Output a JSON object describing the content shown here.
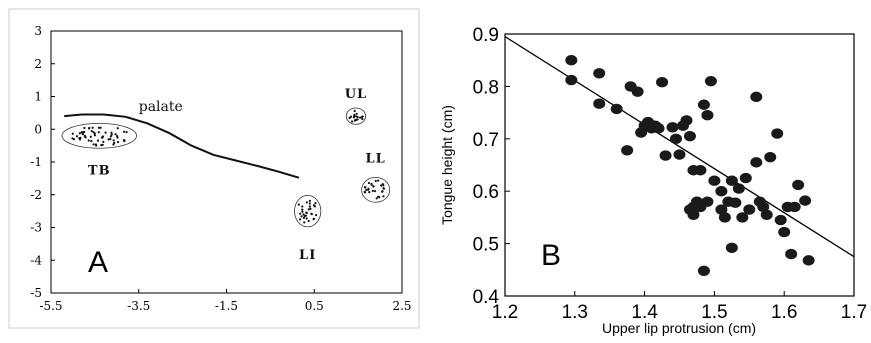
{
  "chart_data": [
    {
      "type": "scatter",
      "panel_label": "A",
      "xlim": [
        -5.5,
        2.5
      ],
      "ylim": [
        -5,
        3
      ],
      "xticks": [
        "-5.5",
        "-3.5",
        "-1.5",
        "0.5",
        "2.5"
      ],
      "yticks": [
        "3",
        "2",
        "1",
        "0",
        "-1",
        "-2",
        "-3",
        "-4",
        "-5"
      ],
      "xlabel": "",
      "ylabel": "",
      "grid": false,
      "palate": {
        "label": "palate",
        "points": [
          [
            -5.2,
            0.4
          ],
          [
            -4.8,
            0.45
          ],
          [
            -4.3,
            0.45
          ],
          [
            -3.8,
            0.38
          ],
          [
            -3.3,
            0.18
          ],
          [
            -2.8,
            -0.12
          ],
          [
            -2.3,
            -0.5
          ],
          [
            -1.8,
            -0.78
          ],
          [
            -1.3,
            -0.95
          ],
          [
            -0.8,
            -1.12
          ],
          [
            -0.3,
            -1.3
          ],
          [
            0.0,
            -1.42
          ],
          [
            0.15,
            -1.48
          ]
        ]
      },
      "clusters": [
        {
          "label": "TB",
          "center": [
            -4.4,
            -0.2
          ],
          "radii": [
            0.85,
            0.38
          ],
          "count": 60
        },
        {
          "label": "UL",
          "center": [
            1.45,
            0.4
          ],
          "radii": [
            0.22,
            0.25
          ],
          "count": 18
        },
        {
          "label": "LL",
          "center": [
            1.9,
            -1.85
          ],
          "radii": [
            0.32,
            0.38
          ],
          "count": 28
        },
        {
          "label": "LI",
          "center": [
            0.35,
            -2.5
          ],
          "radii": [
            0.3,
            0.48
          ],
          "count": 30
        }
      ]
    },
    {
      "type": "scatter",
      "panel_label": "B",
      "xlabel": "Upper lip protrusion (cm)",
      "ylabel": "Tongue height (cm)",
      "xlim": [
        1.2,
        1.7
      ],
      "ylim": [
        0.4,
        0.9
      ],
      "xticks": [
        "1.2",
        "1.3",
        "1.4",
        "1.5",
        "1.6",
        "1.7"
      ],
      "yticks": [
        "0.9",
        "0.8",
        "0.7",
        "0.6",
        "0.5",
        "0.4"
      ],
      "grid": false,
      "regression_line": [
        [
          1.2,
          0.895
        ],
        [
          1.7,
          0.475
        ]
      ],
      "points": [
        [
          1.295,
          0.85
        ],
        [
          1.295,
          0.812
        ],
        [
          1.335,
          0.825
        ],
        [
          1.335,
          0.767
        ],
        [
          1.36,
          0.757
        ],
        [
          1.375,
          0.678
        ],
        [
          1.38,
          0.8
        ],
        [
          1.39,
          0.79
        ],
        [
          1.395,
          0.712
        ],
        [
          1.4,
          0.725
        ],
        [
          1.405,
          0.732
        ],
        [
          1.41,
          0.72
        ],
        [
          1.415,
          0.725
        ],
        [
          1.42,
          0.72
        ],
        [
          1.425,
          0.808
        ],
        [
          1.43,
          0.668
        ],
        [
          1.44,
          0.722
        ],
        [
          1.445,
          0.7
        ],
        [
          1.45,
          0.67
        ],
        [
          1.455,
          0.725
        ],
        [
          1.46,
          0.735
        ],
        [
          1.465,
          0.705
        ],
        [
          1.465,
          0.565
        ],
        [
          1.47,
          0.64
        ],
        [
          1.47,
          0.57
        ],
        [
          1.47,
          0.555
        ],
        [
          1.475,
          0.58
        ],
        [
          1.48,
          0.64
        ],
        [
          1.48,
          0.57
        ],
        [
          1.485,
          0.765
        ],
        [
          1.485,
          0.448
        ],
        [
          1.49,
          0.745
        ],
        [
          1.49,
          0.58
        ],
        [
          1.495,
          0.81
        ],
        [
          1.5,
          0.62
        ],
        [
          1.51,
          0.565
        ],
        [
          1.51,
          0.6
        ],
        [
          1.515,
          0.55
        ],
        [
          1.52,
          0.58
        ],
        [
          1.525,
          0.62
        ],
        [
          1.525,
          0.492
        ],
        [
          1.53,
          0.578
        ],
        [
          1.535,
          0.605
        ],
        [
          1.54,
          0.55
        ],
        [
          1.545,
          0.625
        ],
        [
          1.55,
          0.565
        ],
        [
          1.56,
          0.78
        ],
        [
          1.56,
          0.655
        ],
        [
          1.565,
          0.58
        ],
        [
          1.57,
          0.57
        ],
        [
          1.575,
          0.555
        ],
        [
          1.58,
          0.665
        ],
        [
          1.59,
          0.71
        ],
        [
          1.595,
          0.545
        ],
        [
          1.6,
          0.522
        ],
        [
          1.605,
          0.57
        ],
        [
          1.61,
          0.48
        ],
        [
          1.615,
          0.57
        ],
        [
          1.62,
          0.612
        ],
        [
          1.63,
          0.582
        ],
        [
          1.635,
          0.468
        ]
      ]
    }
  ]
}
